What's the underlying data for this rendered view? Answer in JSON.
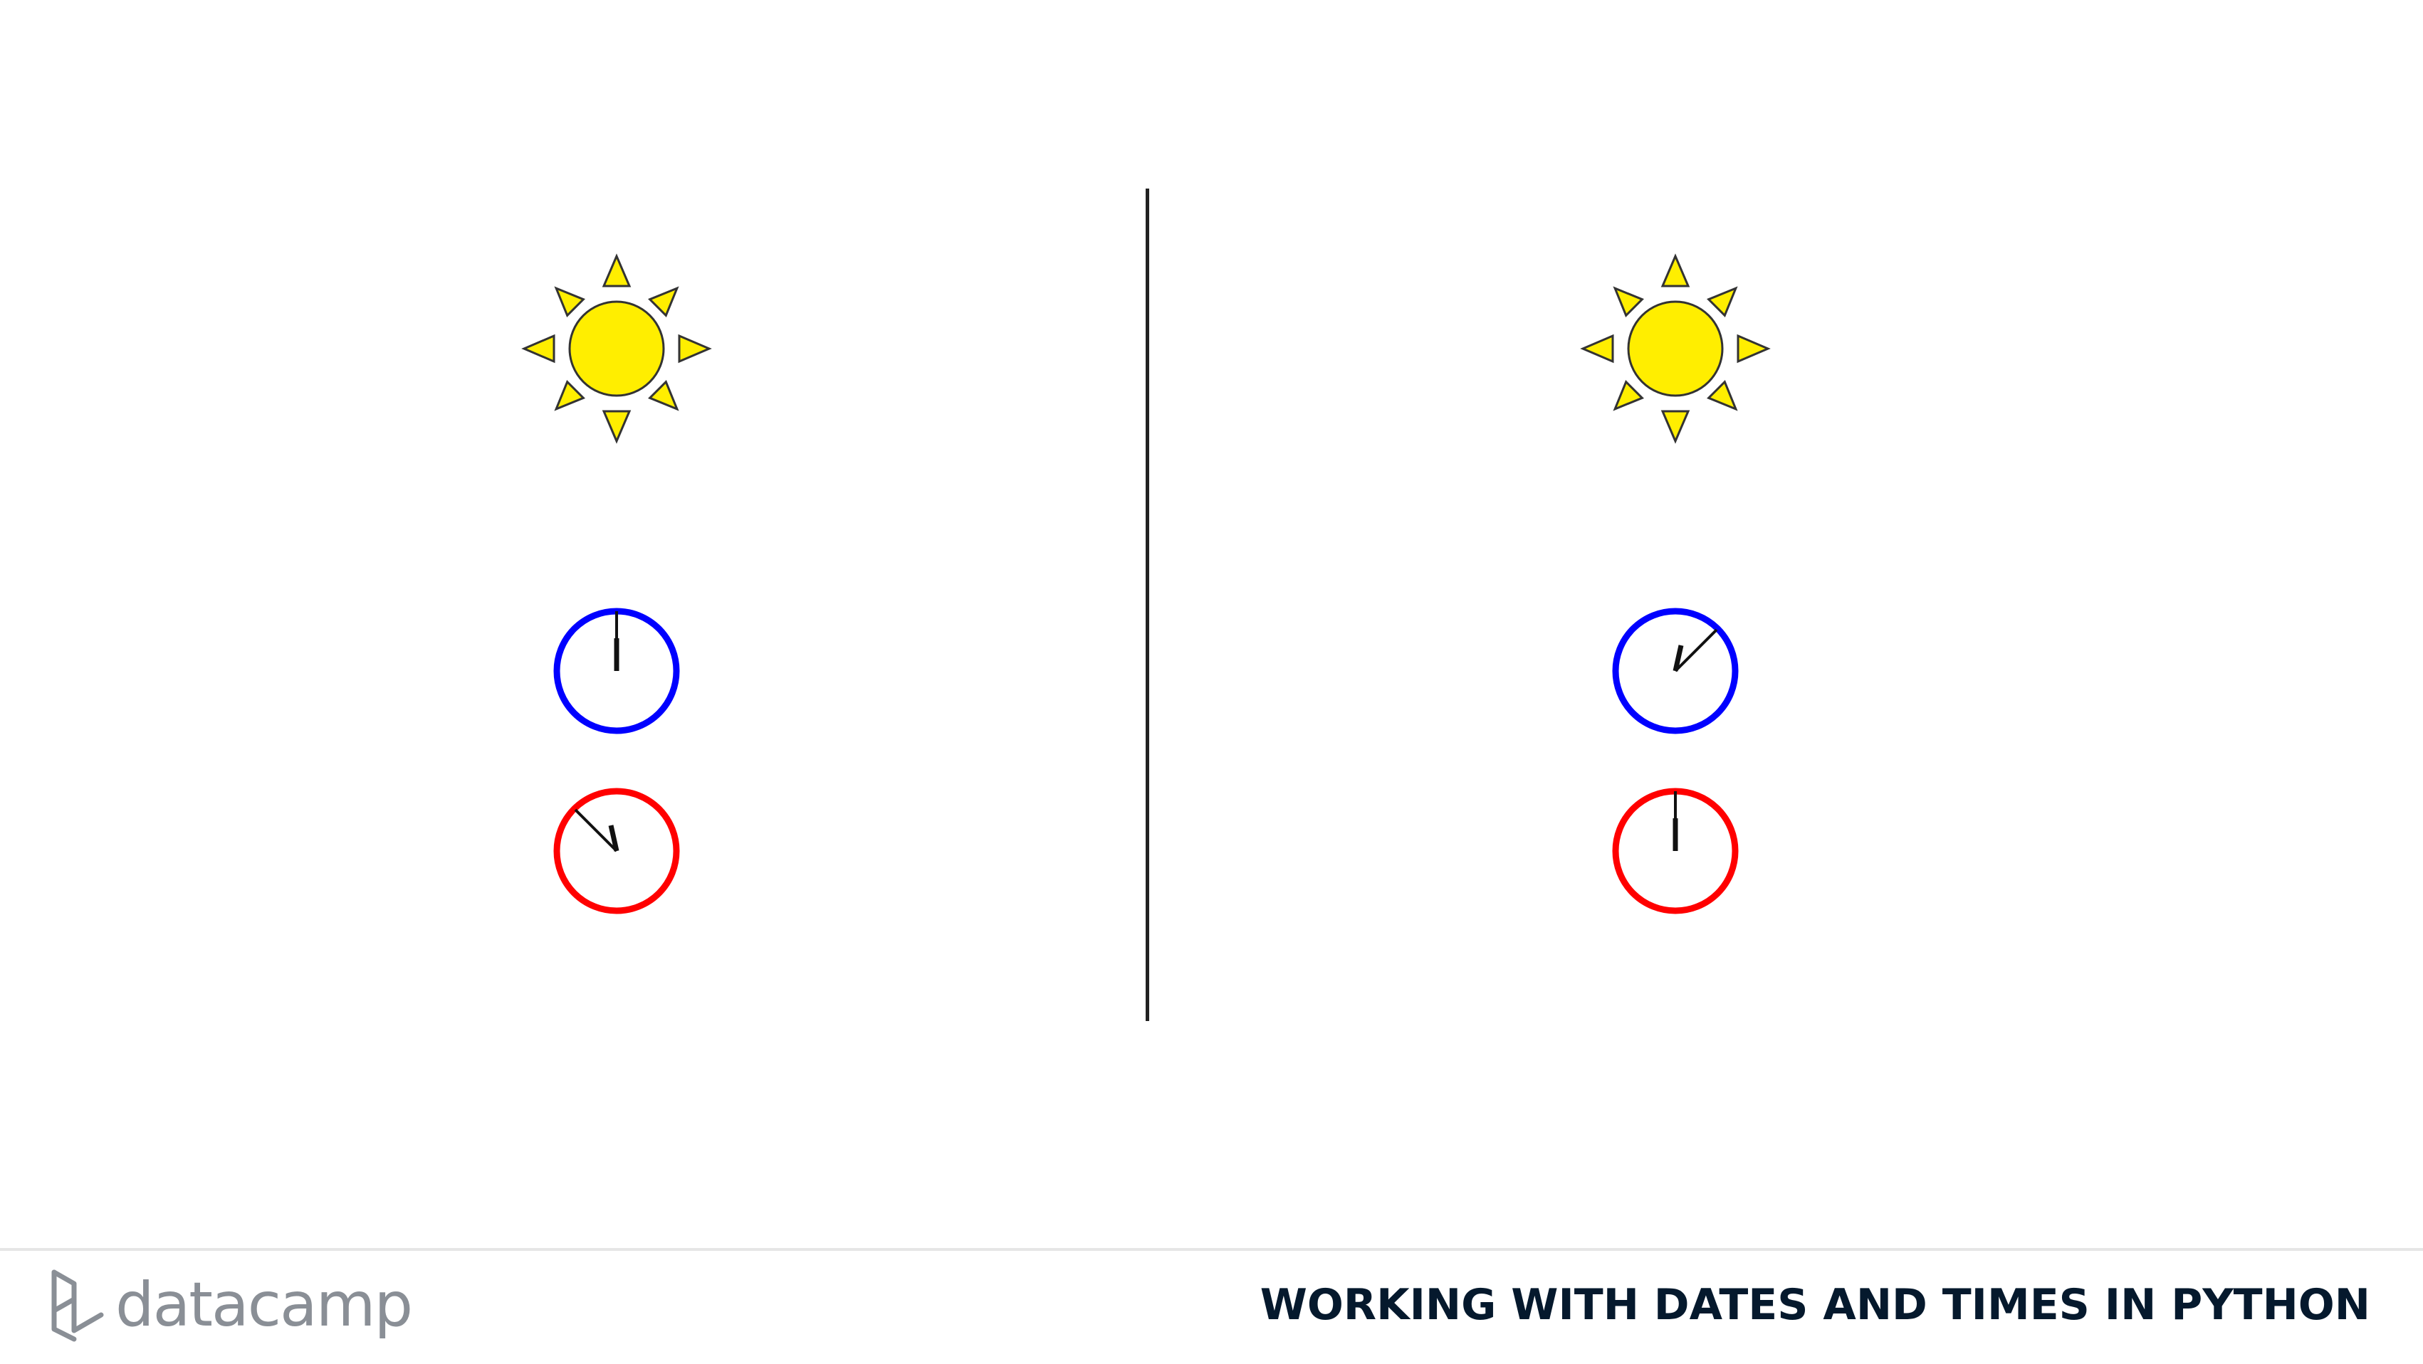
{
  "footer": {
    "brand": "datacamp",
    "course_title": "WORKING WITH DATES AND TIMES IN PYTHON"
  },
  "panels": [
    {
      "sun_icon": "sun-icon",
      "clocks": [
        {
          "color": "#0000ff",
          "icon": "clock-icon"
        },
        {
          "color": "#ff0000",
          "icon": "clock-icon"
        }
      ]
    },
    {
      "sun_icon": "sun-icon",
      "clocks": [
        {
          "color": "#0000ff",
          "icon": "clock-icon"
        },
        {
          "color": "#ff0000",
          "icon": "clock-icon"
        }
      ]
    }
  ],
  "colors": {
    "sun_fill": "#ffee00",
    "clock_blue": "#0000ff",
    "clock_red": "#ff0000",
    "title": "#05192d",
    "logo": "#8a8f96"
  }
}
